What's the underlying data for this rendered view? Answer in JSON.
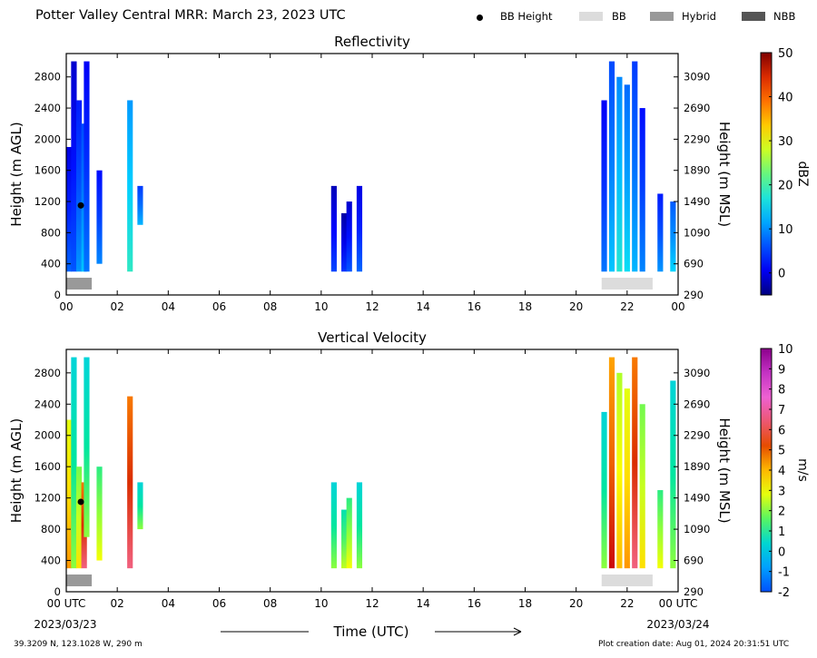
{
  "title": "Potter Valley Central MRR:  March 23, 2023 UTC",
  "legend": {
    "bb_height": "BB Height",
    "bb": "BB",
    "hybrid": "Hybrid",
    "nbb": "NBB",
    "colors": {
      "bb": "#dcdcdc",
      "hybrid": "#999999",
      "nbb": "#555555"
    }
  },
  "footer": {
    "location": "39.3209 N, 123.1028 W, 290 m",
    "creation": "Plot creation date: Aug 01, 2024 20:31:51 UTC"
  },
  "xaxis": {
    "label": "Time (UTC)",
    "start_tick": "00 UTC",
    "end_tick": "00 UTC",
    "start_date": "2023/03/23",
    "end_date": "2023/03/24"
  },
  "chart_data": [
    {
      "type": "heatmap",
      "title": "Reflectivity",
      "ylabel": "Height (m AGL)",
      "ylabel_right": "Height (m MSL)",
      "xlim": [
        0,
        24
      ],
      "ylim": [
        0,
        3100
      ],
      "xticks": [
        "00",
        "02",
        "04",
        "06",
        "08",
        "10",
        "12",
        "14",
        "16",
        "18",
        "20",
        "22",
        "00"
      ],
      "yticks": [
        0,
        400,
        800,
        1200,
        1600,
        2000,
        2400,
        2800
      ],
      "yticks_right": [
        290,
        690,
        1090,
        1490,
        1890,
        2290,
        2690,
        3090
      ],
      "colorbar": {
        "label": "dBZ",
        "min": -5,
        "max": 50,
        "ticks": [
          0,
          10,
          20,
          30,
          40,
          50
        ]
      },
      "bb_height_marker": {
        "time": 0.5,
        "height": 1150
      },
      "bright_band_bars": [
        {
          "type": "Hybrid",
          "start": 0.0,
          "end": 1.0
        },
        {
          "type": "BB",
          "start": 21.0,
          "end": 23.0
        }
      ],
      "echo_columns": [
        {
          "t": 0.1,
          "bottom": 300,
          "top": 1900,
          "value": 3
        },
        {
          "t": 0.3,
          "bottom": 300,
          "top": 3000,
          "value": 2
        },
        {
          "t": 0.5,
          "bottom": 300,
          "top": 2500,
          "value": 6
        },
        {
          "t": 0.7,
          "bottom": 300,
          "top": 2200,
          "value": 9
        },
        {
          "t": 0.8,
          "bottom": 300,
          "top": 3000,
          "value": 4
        },
        {
          "t": 1.3,
          "bottom": 400,
          "top": 1600,
          "value": 5
        },
        {
          "t": 2.5,
          "bottom": 300,
          "top": 2500,
          "value": 14
        },
        {
          "t": 2.9,
          "bottom": 900,
          "top": 1400,
          "value": 8
        },
        {
          "t": 10.5,
          "bottom": 300,
          "top": 1400,
          "value": 1
        },
        {
          "t": 10.9,
          "bottom": 300,
          "top": 1050,
          "value": 0
        },
        {
          "t": 11.1,
          "bottom": 300,
          "top": 1200,
          "value": 2
        },
        {
          "t": 11.5,
          "bottom": 300,
          "top": 1400,
          "value": 3
        },
        {
          "t": 21.1,
          "bottom": 300,
          "top": 2500,
          "value": 4
        },
        {
          "t": 21.4,
          "bottom": 300,
          "top": 3000,
          "value": 9
        },
        {
          "t": 21.7,
          "bottom": 300,
          "top": 2800,
          "value": 13
        },
        {
          "t": 22.0,
          "bottom": 300,
          "top": 2700,
          "value": 11
        },
        {
          "t": 22.3,
          "bottom": 300,
          "top": 3000,
          "value": 8
        },
        {
          "t": 22.6,
          "bottom": 300,
          "top": 2400,
          "value": 5
        },
        {
          "t": 23.3,
          "bottom": 300,
          "top": 1300,
          "value": 6
        },
        {
          "t": 23.8,
          "bottom": 300,
          "top": 1200,
          "value": 10
        }
      ]
    },
    {
      "type": "heatmap",
      "title": "Vertical Velocity",
      "ylabel": "Height (m AGL)",
      "ylabel_right": "Height (m MSL)",
      "xlim": [
        0,
        24
      ],
      "ylim": [
        0,
        3100
      ],
      "xticks": [
        "00 UTC",
        "02",
        "04",
        "06",
        "08",
        "10",
        "12",
        "14",
        "16",
        "18",
        "20",
        "22",
        "00 UTC"
      ],
      "yticks": [
        0,
        400,
        800,
        1200,
        1600,
        2000,
        2400,
        2800
      ],
      "yticks_right": [
        290,
        690,
        1090,
        1490,
        1890,
        2290,
        2690,
        3090
      ],
      "colorbar": {
        "label": "m/s",
        "min": -2,
        "max": 10,
        "ticks": [
          -2,
          -1,
          0,
          1,
          2,
          3,
          4,
          5,
          6,
          7,
          8,
          9,
          10
        ]
      },
      "bb_height_marker": {
        "time": 0.5,
        "height": 1150
      },
      "bright_band_bars": [
        {
          "type": "Hybrid",
          "start": 0.0,
          "end": 1.0
        },
        {
          "type": "BB",
          "start": 21.0,
          "end": 23.0
        }
      ],
      "echo_columns": [
        {
          "t": 0.1,
          "bottom": 300,
          "top": 2200,
          "value": 3.5
        },
        {
          "t": 0.3,
          "bottom": 300,
          "top": 3000,
          "value": 1.0
        },
        {
          "t": 0.5,
          "bottom": 300,
          "top": 1600,
          "value": 2.5
        },
        {
          "t": 0.7,
          "bottom": 300,
          "top": 1400,
          "value": 5.5
        },
        {
          "t": 0.8,
          "bottom": 700,
          "top": 3000,
          "value": 1.0
        },
        {
          "t": 1.3,
          "bottom": 400,
          "top": 1600,
          "value": 2.0
        },
        {
          "t": 2.5,
          "bottom": 300,
          "top": 2500,
          "value": 5.5
        },
        {
          "t": 2.9,
          "bottom": 800,
          "top": 1400,
          "value": 1.0
        },
        {
          "t": 10.5,
          "bottom": 300,
          "top": 1400,
          "value": 1.0
        },
        {
          "t": 10.9,
          "bottom": 300,
          "top": 1050,
          "value": 1.5
        },
        {
          "t": 11.1,
          "bottom": 300,
          "top": 1200,
          "value": 2.0
        },
        {
          "t": 11.5,
          "bottom": 300,
          "top": 1400,
          "value": 1.0
        },
        {
          "t": 21.1,
          "bottom": 300,
          "top": 2300,
          "value": 1.0
        },
        {
          "t": 21.4,
          "bottom": 300,
          "top": 3000,
          "value": 5.0
        },
        {
          "t": 21.7,
          "bottom": 300,
          "top": 2800,
          "value": 3.0
        },
        {
          "t": 22.0,
          "bottom": 300,
          "top": 2600,
          "value": 3.5
        },
        {
          "t": 22.3,
          "bottom": 300,
          "top": 3000,
          "value": 5.5
        },
        {
          "t": 22.6,
          "bottom": 300,
          "top": 2400,
          "value": 2.5
        },
        {
          "t": 23.3,
          "bottom": 300,
          "top": 1300,
          "value": 2.0
        },
        {
          "t": 23.8,
          "bottom": 300,
          "top": 2700,
          "value": 1.0
        }
      ]
    }
  ]
}
